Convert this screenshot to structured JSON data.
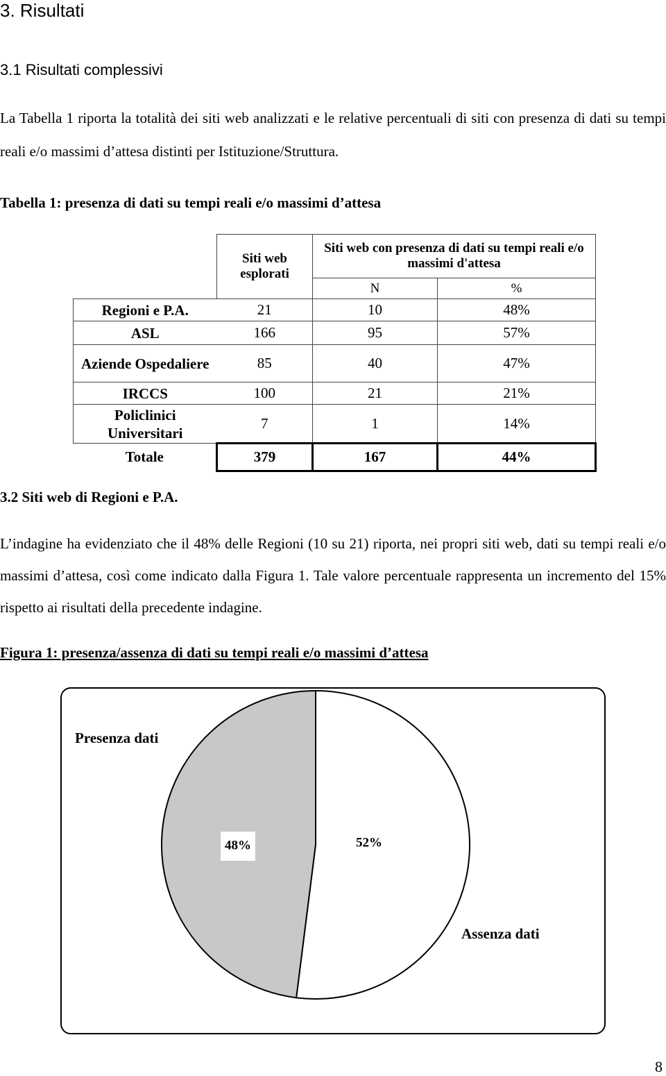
{
  "heading": "3. Risultati",
  "section1": {
    "title": "3.1 Risultati complessivi",
    "paragraph": "La Tabella 1 riporta la totalità dei siti web analizzati e le relative percentuali di siti con presenza di dati su tempi reali e/o massimi d’attesa distinti per Istituzione/Struttura."
  },
  "table": {
    "caption": "Tabella 1: presenza di dati su tempi reali e/o massimi d’attesa",
    "header": {
      "explored": "Siti web esplorati",
      "group": "Siti web con presenza di dati su tempi reali e/o massimi d'attesa",
      "n": "N",
      "pct": "%"
    },
    "rows": [
      [
        "Regioni e P.A.",
        "21",
        "10",
        "48%"
      ],
      [
        "ASL",
        "166",
        "95",
        "57%"
      ],
      [
        "Aziende Ospedaliere",
        "85",
        "40",
        "47%"
      ],
      [
        "IRCCS",
        "100",
        "21",
        "21%"
      ],
      [
        "Policlinici Universitari",
        "7",
        "1",
        "14%"
      ]
    ],
    "total": [
      "Totale",
      "379",
      "167",
      "44%"
    ]
  },
  "section2": {
    "title": "3.2 Siti web di Regioni e P.A.",
    "paragraph": "L’indagine ha evidenziato che il 48% delle Regioni (10 su 21) riporta, nei propri siti web, dati su tempi reali e/o massimi d’attesa, così come indicato dalla Figura 1. Tale valore percentuale rappresenta un incremento del 15% rispetto ai risultati della precedente indagine."
  },
  "chart_data": {
    "type": "pie",
    "title": "Figura 1: presenza/assenza di dati su tempi reali e/o massimi d’attesa",
    "categories": [
      "Presenza dati",
      "Assenza dati"
    ],
    "values": [
      48,
      52
    ],
    "value_labels": [
      "48%",
      "52%"
    ],
    "colors": [
      "#c8c8c8",
      "#ffffff"
    ]
  },
  "page_number": "8"
}
